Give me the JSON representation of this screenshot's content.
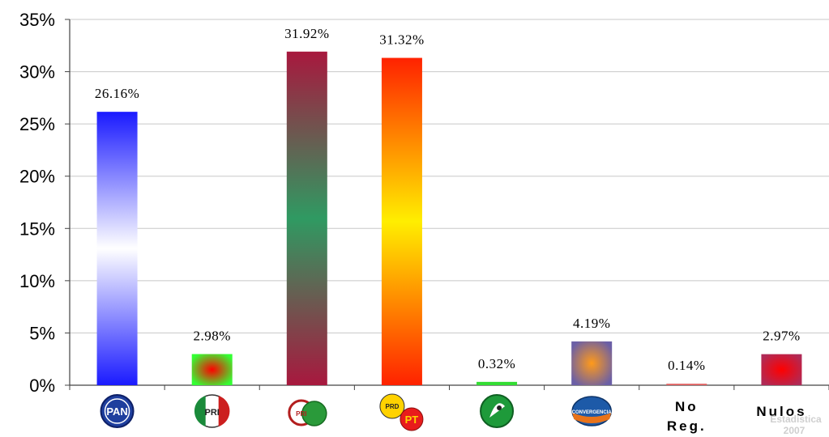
{
  "chart_data": {
    "type": "bar",
    "categories": [
      "PAN",
      "PRI",
      "PRI-PVEM",
      "PRD-PT",
      "PVEM",
      "Convergencia",
      "No Reg.",
      "Nulos"
    ],
    "category_display": [
      {
        "kind": "logo",
        "icon": "pan-logo-icon",
        "label": "PAN"
      },
      {
        "kind": "logo",
        "icon": "pri-logo-icon",
        "label": "PRI"
      },
      {
        "kind": "logo",
        "icon": "pri-pvem-coalition-logo-icon",
        "label": "PRI"
      },
      {
        "kind": "logo",
        "icon": "prd-pt-coalition-logo-icon",
        "label": "PRD PT"
      },
      {
        "kind": "logo",
        "icon": "pvem-logo-icon",
        "label": ""
      },
      {
        "kind": "logo",
        "icon": "convergencia-logo-icon",
        "label": "CONVERGENCIA"
      },
      {
        "kind": "text",
        "lines": [
          "No",
          "Reg."
        ]
      },
      {
        "kind": "text",
        "lines": [
          "Nulos"
        ]
      }
    ],
    "values": [
      26.16,
      2.98,
      31.92,
      31.32,
      0.32,
      4.19,
      0.14,
      2.97
    ],
    "data_labels": [
      "26.16%",
      "2.98%",
      "31.92%",
      "31.32%",
      "0.32%",
      "4.19%",
      "0.14%",
      "2.97%"
    ],
    "yticks": [
      "0%",
      "5%",
      "10%",
      "15%",
      "20%",
      "25%",
      "30%",
      "35%"
    ],
    "ylim": [
      0,
      35
    ],
    "ytick_step": 5,
    "grid": true,
    "title": "",
    "xlabel": "",
    "ylabel": "",
    "bar_fills": [
      {
        "style": "vertical-glow",
        "edge": "#1a1aff",
        "center": "#ffffff"
      },
      {
        "style": "radial",
        "edge": "#33ff33",
        "center": "#ff0000"
      },
      {
        "style": "vertical-glow",
        "edge": "#a8183e",
        "center": "#2f9a62"
      },
      {
        "style": "vertical-glow",
        "edge": "#ff2200",
        "center": "#ffee00"
      },
      {
        "style": "solid",
        "edge": "#33dd33",
        "center": "#33dd33"
      },
      {
        "style": "radial",
        "edge": "#6b5fa6",
        "center": "#ff9a1a"
      },
      {
        "style": "solid",
        "edge": "#e06060",
        "center": "#e06060"
      },
      {
        "style": "radial",
        "edge": "#b02a56",
        "center": "#ff0000"
      }
    ],
    "watermark": [
      "Estadística",
      "2007"
    ]
  }
}
